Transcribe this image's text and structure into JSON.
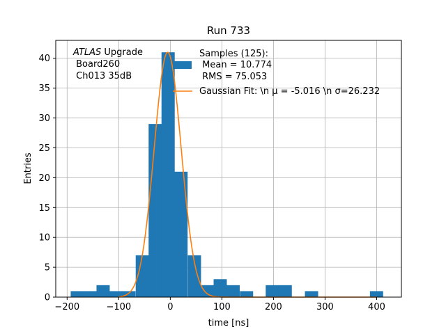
{
  "chart_data": {
    "type": "bar",
    "title": "Run 733",
    "xlabel": "time [ns]",
    "ylabel": "Entries",
    "xlim": [
      -222,
      448
    ],
    "ylim": [
      0,
      43
    ],
    "xticks": [
      -200,
      -100,
      0,
      100,
      200,
      300,
      400
    ],
    "yticks": [
      0,
      5,
      10,
      15,
      20,
      25,
      30,
      35,
      40
    ],
    "grid": true,
    "colors": {
      "histogram": "#1f77b4",
      "fit": "#ff7f0e"
    },
    "histogram": {
      "bin_width": 25.2,
      "bins": [
        {
          "x0": -193,
          "count": 1
        },
        {
          "x0": -168,
          "count": 1
        },
        {
          "x0": -143,
          "count": 2
        },
        {
          "x0": -118,
          "count": 1
        },
        {
          "x0": -93,
          "count": 1
        },
        {
          "x0": -67,
          "count": 7
        },
        {
          "x0": -42,
          "count": 29
        },
        {
          "x0": -17,
          "count": 41
        },
        {
          "x0": 8,
          "count": 21
        },
        {
          "x0": 34,
          "count": 7
        },
        {
          "x0": 59,
          "count": 2
        },
        {
          "x0": 84,
          "count": 3
        },
        {
          "x0": 109,
          "count": 2
        },
        {
          "x0": 135,
          "count": 1
        },
        {
          "x0": 185,
          "count": 2
        },
        {
          "x0": 210,
          "count": 2
        },
        {
          "x0": 261,
          "count": 1
        },
        {
          "x0": 387,
          "count": 1
        }
      ]
    },
    "fit": {
      "type": "gaussian",
      "mu": -5.016,
      "sigma": 26.232,
      "amplitude": 41,
      "x_range": [
        -100,
        400
      ]
    },
    "annotation_lines": [
      "ATLAS",
      " Upgrade",
      " Board260",
      " Ch013 35dB"
    ],
    "legend": {
      "placement": "upper-center",
      "entries": [
        {
          "kind": "patch",
          "lines": [
            "Samples (125):",
            " Mean = 10.774",
            " RMS = 75.053"
          ]
        },
        {
          "kind": "line",
          "text": "Gaussian Fit: \\n μ = -5.016 \\n σ=26.232"
        }
      ]
    }
  }
}
